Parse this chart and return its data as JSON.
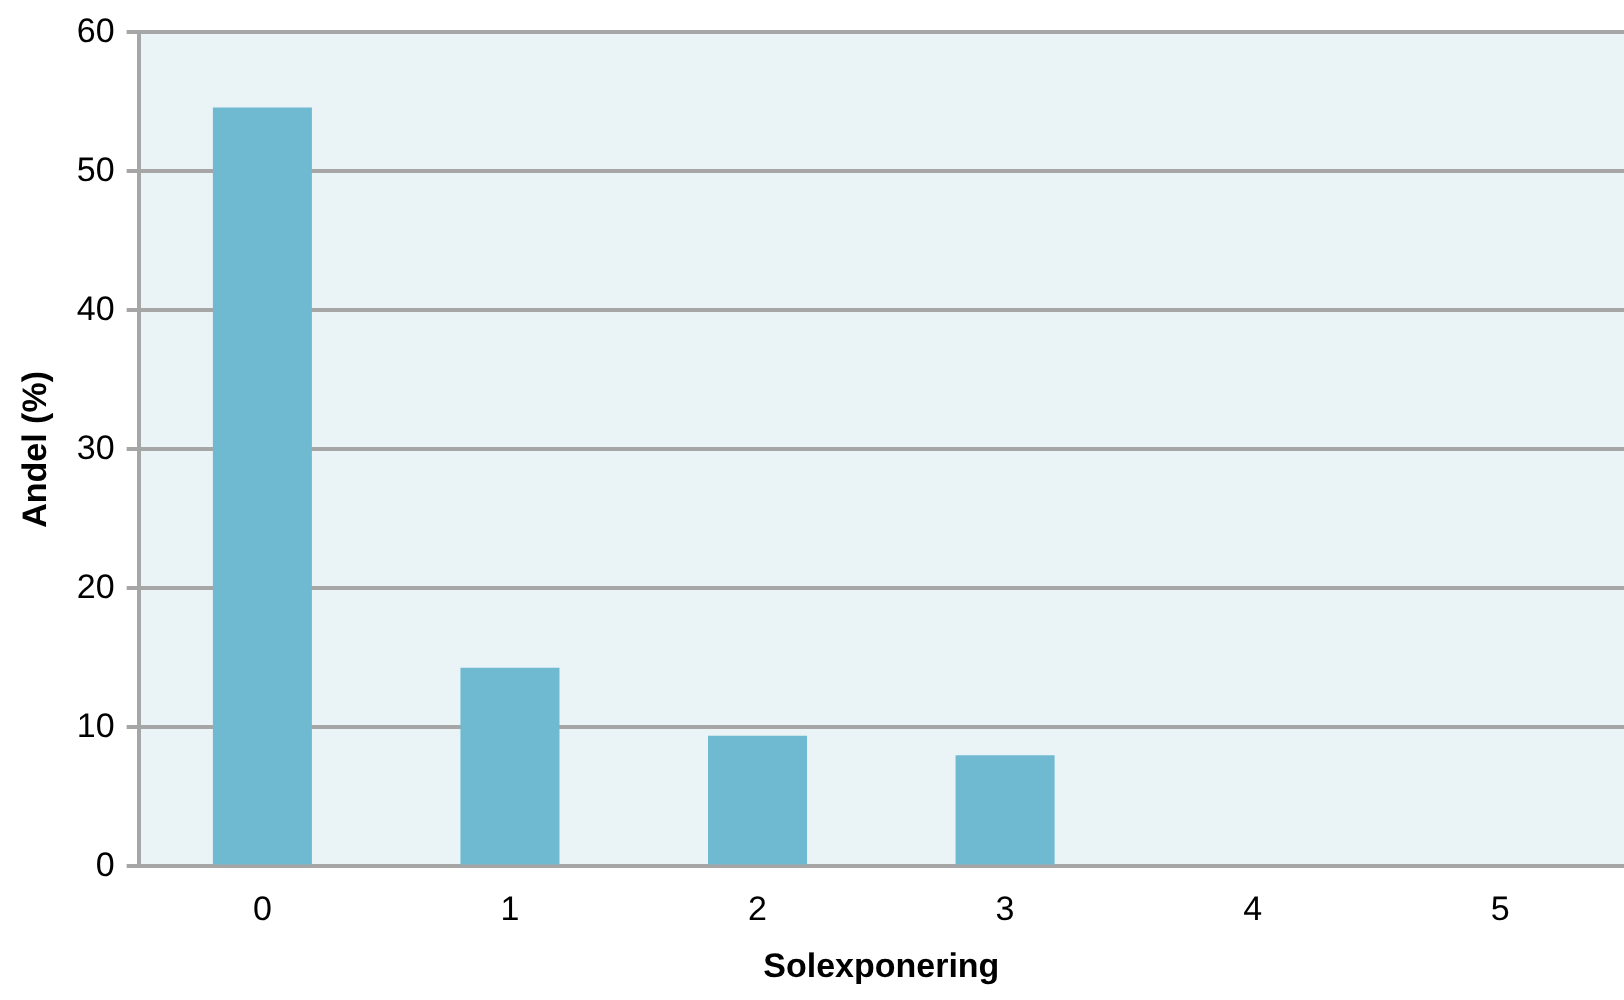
{
  "chart_data": {
    "type": "bar",
    "xlabel": "Solexponering",
    "ylabel": "Andel (%)",
    "categories": [
      "0",
      "1",
      "2",
      "3",
      "4",
      "5"
    ],
    "values": [
      54.6,
      14.3,
      9.4,
      8.0,
      0,
      0
    ],
    "color": "#6fbad1",
    "ylim": [
      0,
      60
    ],
    "yticks": [
      0,
      10,
      20,
      30,
      40,
      50,
      60
    ],
    "grid": "y",
    "legend": false
  }
}
